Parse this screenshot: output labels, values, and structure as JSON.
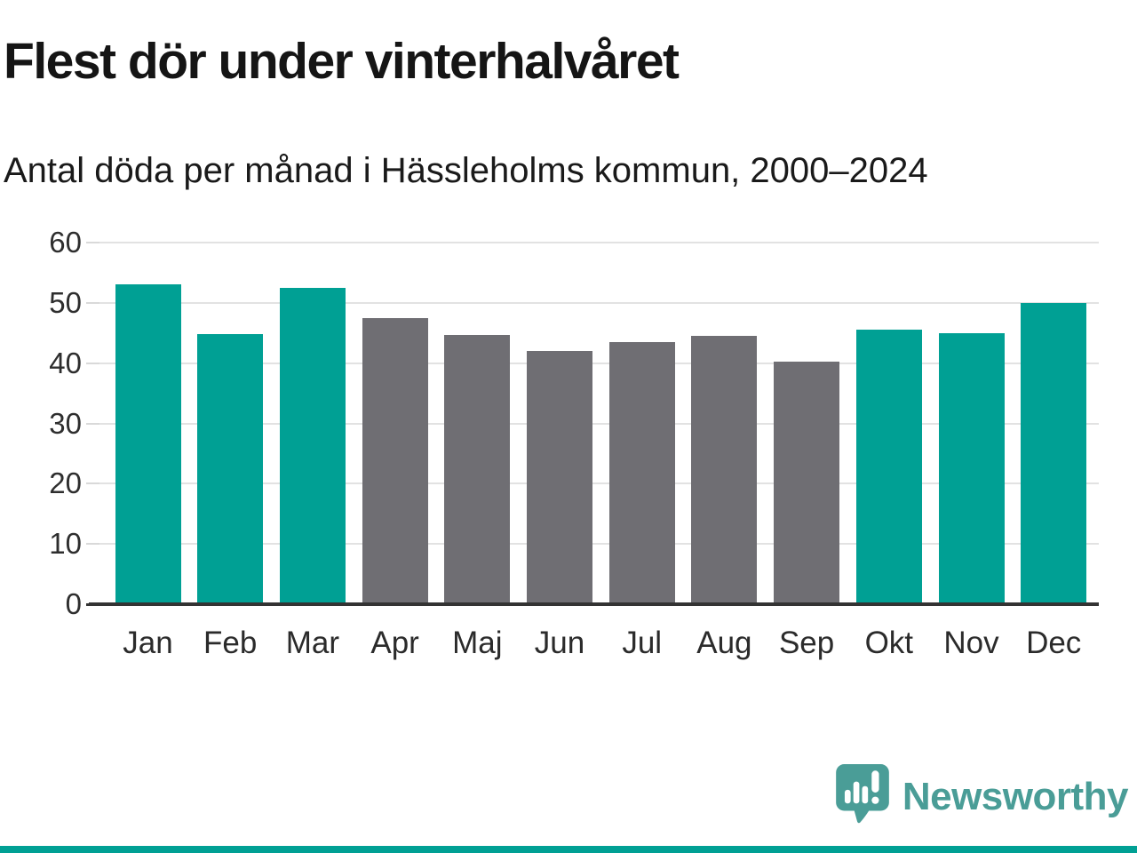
{
  "title": "Flest dör under vinterhalvåret",
  "subtitle": "Antal döda per månad i Hässleholms kommun, 2000–2024",
  "chart_data": {
    "type": "bar",
    "categories": [
      "Jan",
      "Feb",
      "Mar",
      "Apr",
      "Maj",
      "Jun",
      "Jul",
      "Aug",
      "Sep",
      "Okt",
      "Nov",
      "Dec"
    ],
    "values": [
      53.0,
      44.8,
      52.5,
      47.5,
      44.7,
      42.0,
      43.5,
      44.5,
      40.3,
      45.6,
      44.9,
      50.0
    ],
    "winter_months": [
      "Jan",
      "Feb",
      "Mar",
      "Okt",
      "Nov",
      "Dec"
    ],
    "title": "Flest dör under vinterhalvåret",
    "subtitle": "Antal döda per månad i Hässleholms kommun, 2000–2024",
    "xlabel": "",
    "ylabel": "",
    "ylim": [
      0,
      60
    ],
    "yticks": [
      0,
      10,
      20,
      30,
      40,
      50,
      60
    ],
    "grid": true,
    "legend": "none",
    "colors": {
      "winter_bar": "#00a094",
      "summer_bar": "#6f6e73",
      "gridline": "#e2e2e2",
      "axis_line": "#333333",
      "tick_label": "#2e2e2e"
    }
  },
  "branding": {
    "logo_text": "Newsworthy",
    "logo_color": "#4a9d97",
    "logo_icon": "newsworthy-speech-bubble-bar-chart-icon",
    "accent_strip_color": "#00a094"
  }
}
